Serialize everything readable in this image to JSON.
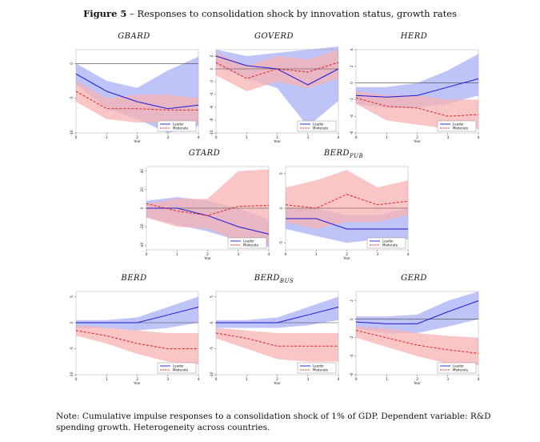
{
  "figure": {
    "label": "Figure 5",
    "dash": " – ",
    "title": "Responses to consolidation shock by innovation status, growth rates"
  },
  "note": "Note: Cumulative impulse responses to a consolidation shock of 1% of GDP. Dependent variable: R&D spending growth. Heterogeneity across countries.",
  "colors": {
    "leader": "#1a1adb",
    "moderate": "#e02020",
    "leader_band": "#aab0f5",
    "moderate_band": "#f7b1b1"
  },
  "chart_data": [
    {
      "id": "gbard",
      "type": "line",
      "title": "GBARD",
      "title_sub": "",
      "xlabel": "Year",
      "x": [
        0,
        1,
        2,
        3,
        4
      ],
      "xticks": [
        "0",
        "1",
        "2",
        "3",
        "4"
      ],
      "ylim": [
        -10,
        2
      ],
      "yticks": [
        {
          "v": 0,
          "label": "0"
        },
        {
          "v": -5,
          "label": "-5"
        },
        {
          "v": -10,
          "label": "-10"
        }
      ],
      "legend_position": "bottom-right",
      "series": [
        {
          "name": "Leader",
          "style": "solid",
          "values": [
            -1.5,
            -4,
            -5.5,
            -6.5,
            -6
          ],
          "lower": [
            -3,
            -6.5,
            -8,
            -10,
            -9
          ],
          "upper": [
            0,
            -2.5,
            -3.5,
            -1,
            1
          ]
        },
        {
          "name": "Moderate",
          "style": "dashed",
          "values": [
            -4,
            -6.5,
            -6.5,
            -6.7,
            -6.7
          ],
          "lower": [
            -5.5,
            -8,
            -8.5,
            -8.5,
            -8.5
          ],
          "upper": [
            -2.5,
            -5,
            -4.5,
            -4.5,
            -5
          ]
        }
      ]
    },
    {
      "id": "goverd",
      "type": "line",
      "title": "GOVERD",
      "title_sub": "",
      "xlabel": "Year",
      "x": [
        0,
        1,
        2,
        3,
        4
      ],
      "xticks": [
        "0",
        "1",
        "2",
        "3",
        "4"
      ],
      "ylim": [
        -10,
        3
      ],
      "yticks": [
        {
          "v": 2,
          "label": "2"
        },
        {
          "v": 0,
          "label": "0"
        },
        {
          "v": -2,
          "label": "-2"
        },
        {
          "v": -4,
          "label": "-4"
        },
        {
          "v": -6,
          "label": "-6"
        },
        {
          "v": -8,
          "label": "-8"
        },
        {
          "v": -10,
          "label": "-10"
        }
      ],
      "legend_position": "bottom-right",
      "series": [
        {
          "name": "Leader",
          "style": "solid",
          "values": [
            2,
            0.5,
            0,
            -2.5,
            0
          ],
          "lower": [
            0.5,
            -1.5,
            -3,
            -9,
            -5
          ],
          "upper": [
            3,
            2,
            2.5,
            3,
            3.5
          ]
        },
        {
          "name": "Moderate",
          "style": "dashed",
          "values": [
            1,
            -1.5,
            0,
            -0.5,
            1
          ],
          "lower": [
            -1,
            -3.5,
            -2,
            -3,
            -1.5
          ],
          "upper": [
            2.5,
            0.5,
            2,
            1.5,
            3
          ]
        }
      ]
    },
    {
      "id": "herd",
      "type": "line",
      "title": "HERD",
      "title_sub": "",
      "xlabel": "Year",
      "x": [
        0,
        1,
        2,
        3,
        4
      ],
      "xticks": [
        "0",
        "1",
        "2",
        "3",
        "4"
      ],
      "ylim": [
        -6,
        4
      ],
      "yticks": [
        {
          "v": 4,
          "label": "4"
        },
        {
          "v": 2,
          "label": "2"
        },
        {
          "v": 0,
          "label": "0"
        },
        {
          "v": -2,
          "label": "-2"
        },
        {
          "v": -4,
          "label": "-4"
        },
        {
          "v": -6,
          "label": "-6"
        }
      ],
      "legend_position": "bottom-right",
      "series": [
        {
          "name": "Leader",
          "style": "solid",
          "values": [
            -1.5,
            -1.7,
            -1.5,
            -0.5,
            0.5
          ],
          "lower": [
            -2.5,
            -3,
            -3,
            -2.5,
            -1.5
          ],
          "upper": [
            -0.5,
            -0.5,
            0,
            1.5,
            3.5
          ]
        },
        {
          "name": "Moderate",
          "style": "dashed",
          "values": [
            -1.8,
            -2.8,
            -3,
            -4,
            -3.8
          ],
          "lower": [
            -2.5,
            -4.5,
            -5,
            -5.5,
            -5.5
          ],
          "upper": [
            -1,
            -1.5,
            -1.5,
            -2,
            -2
          ]
        }
      ]
    },
    {
      "id": "gtard",
      "type": "line",
      "title": "GTARD",
      "title_sub": "",
      "xlabel": "Year",
      "x": [
        0,
        1,
        2,
        3,
        4
      ],
      "xticks": [
        "0",
        "1",
        "2",
        "3",
        "4"
      ],
      "ylim": [
        -45,
        45
      ],
      "yticks": [
        {
          "v": 40,
          "label": "40"
        },
        {
          "v": 20,
          "label": "20"
        },
        {
          "v": 0,
          "label": "0"
        },
        {
          "v": -20,
          "label": "-20"
        },
        {
          "v": -40,
          "label": "-40"
        }
      ],
      "legend_position": "bottom-right",
      "series": [
        {
          "name": "Leader",
          "style": "solid",
          "values": [
            0,
            0,
            -8,
            -20,
            -28
          ],
          "lower": [
            -10,
            -18,
            -25,
            -35,
            -42
          ],
          "upper": [
            8,
            12,
            8,
            0,
            -12
          ]
        },
        {
          "name": "Moderate",
          "style": "dashed",
          "values": [
            5,
            -3,
            -8,
            2,
            3
          ],
          "lower": [
            -10,
            -20,
            -22,
            -35,
            -38
          ],
          "upper": [
            5,
            10,
            10,
            40,
            42
          ]
        }
      ]
    },
    {
      "id": "berdpub",
      "type": "line",
      "title": "BERD",
      "title_sub": "PUB",
      "xlabel": "Year",
      "x": [
        0,
        1,
        2,
        3,
        4
      ],
      "xticks": [
        "0",
        "1",
        "2",
        "3",
        "4"
      ],
      "ylim": [
        -6,
        6
      ],
      "yticks": [
        {
          "v": 5,
          "label": "5"
        },
        {
          "v": 0,
          "label": "0"
        },
        {
          "v": -5,
          "label": "-5"
        }
      ],
      "legend_position": "bottom-right",
      "series": [
        {
          "name": "Leader",
          "style": "solid",
          "values": [
            -1.5,
            -1.5,
            -3,
            -3,
            -3
          ],
          "lower": [
            -3,
            -4,
            -5,
            -4.5,
            -4.5
          ],
          "upper": [
            0,
            0,
            -1,
            -1,
            0
          ]
        },
        {
          "name": "Moderate",
          "style": "dashed",
          "values": [
            0.5,
            0,
            2,
            0.5,
            1
          ],
          "lower": [
            -2,
            -3,
            -2,
            -2,
            -1
          ],
          "upper": [
            3,
            4,
            5.5,
            3,
            4
          ]
        }
      ]
    },
    {
      "id": "berd",
      "type": "line",
      "title": "BERD",
      "title_sub": "",
      "xlabel": "Year",
      "x": [
        0,
        1,
        2,
        3,
        4
      ],
      "xticks": [
        "0",
        "1",
        "2",
        "3",
        "4"
      ],
      "ylim": [
        -10,
        6
      ],
      "yticks": [
        {
          "v": 5,
          "label": "5"
        },
        {
          "v": 0,
          "label": "0"
        },
        {
          "v": -5,
          "label": "-5"
        },
        {
          "v": -10,
          "label": "-10"
        }
      ],
      "legend_position": "bottom-right",
      "series": [
        {
          "name": "Leader",
          "style": "solid",
          "values": [
            0,
            0,
            0,
            1.5,
            3
          ],
          "lower": [
            -1,
            -1,
            -1.5,
            -1,
            0
          ],
          "upper": [
            0.5,
            0.5,
            1,
            3,
            5
          ]
        },
        {
          "name": "Moderate",
          "style": "dashed",
          "values": [
            -1.5,
            -2.5,
            -4,
            -5,
            -5
          ],
          "lower": [
            -2.5,
            -4,
            -6,
            -7.5,
            -8
          ],
          "upper": [
            -0.5,
            -1,
            -1.5,
            -2,
            -2
          ]
        }
      ]
    },
    {
      "id": "berdbus",
      "type": "line",
      "title": "BERD",
      "title_sub": "BUS",
      "xlabel": "Year",
      "x": [
        0,
        1,
        2,
        3,
        4
      ],
      "xticks": [
        "0",
        "1",
        "2",
        "3",
        "4"
      ],
      "ylim": [
        -10,
        6
      ],
      "yticks": [
        {
          "v": 5,
          "label": "5"
        },
        {
          "v": 0,
          "label": "0"
        },
        {
          "v": -5,
          "label": "-5"
        },
        {
          "v": -10,
          "label": "-10"
        }
      ],
      "legend_position": "bottom-right",
      "series": [
        {
          "name": "Leader",
          "style": "solid",
          "values": [
            0,
            0,
            0,
            1.5,
            3
          ],
          "lower": [
            -1,
            -1,
            -1,
            -0.5,
            0.5
          ],
          "upper": [
            0.5,
            0.5,
            1,
            3,
            5
          ]
        },
        {
          "name": "Moderate",
          "style": "dashed",
          "values": [
            -2,
            -3,
            -4.5,
            -4.5,
            -4.5
          ],
          "lower": [
            -3,
            -5,
            -7,
            -7.5,
            -7.5
          ],
          "upper": [
            -1,
            -1.5,
            -2,
            -2,
            -2
          ]
        }
      ]
    },
    {
      "id": "gerd",
      "type": "line",
      "title": "GERD",
      "title_sub": "",
      "xlabel": "Year",
      "x": [
        0,
        1,
        2,
        3,
        4
      ],
      "xticks": [
        "0",
        "1",
        "2",
        "3",
        "4"
      ],
      "ylim": [
        -6,
        3
      ],
      "yticks": [
        {
          "v": 2,
          "label": "2"
        },
        {
          "v": 0,
          "label": "0"
        },
        {
          "v": -2,
          "label": "-2"
        },
        {
          "v": -4,
          "label": "-4"
        },
        {
          "v": -6,
          "label": "-6"
        }
      ],
      "legend_position": "bottom-right",
      "series": [
        {
          "name": "Leader",
          "style": "solid",
          "values": [
            -0.3,
            -0.5,
            -0.5,
            0.8,
            2
          ],
          "lower": [
            -1,
            -1.5,
            -1.5,
            -0.8,
            0
          ],
          "upper": [
            0.3,
            0.3,
            0.5,
            2,
            3
          ]
        },
        {
          "name": "Moderate",
          "style": "dashed",
          "values": [
            -1.2,
            -2,
            -2.8,
            -3.3,
            -3.7
          ],
          "lower": [
            -2,
            -3,
            -4,
            -4.8,
            -5
          ],
          "upper": [
            -0.8,
            -1,
            -1.5,
            -1.8,
            -2
          ]
        }
      ]
    }
  ]
}
